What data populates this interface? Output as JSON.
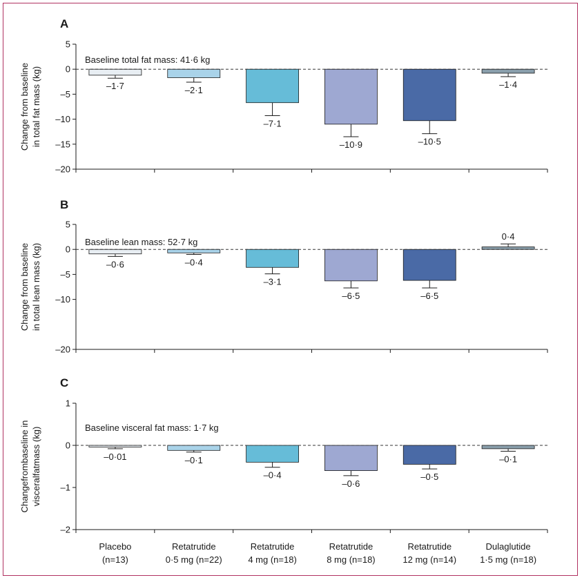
{
  "chart_data": {
    "type": "bar",
    "categories": [
      {
        "line1": "Placebo",
        "line2": "(n=13)"
      },
      {
        "line1": "Retatrutide",
        "line2": "0·5 mg (n=22)"
      },
      {
        "line1": "Retatrutide",
        "line2": "4 mg (n=18)"
      },
      {
        "line1": "Retatrutide",
        "line2": "8 mg (n=18)"
      },
      {
        "line1": "Retatrutide",
        "line2": "12 mg (n=14)"
      },
      {
        "line1": "Dulaglutide",
        "line2": "1·5 mg (n=18)"
      }
    ],
    "colors": [
      "#e8eef3",
      "#a9d3e9",
      "#66bcd8",
      "#9ea8d2",
      "#4a6aa6",
      "#8a9fac"
    ],
    "panels": [
      {
        "letter": "A",
        "ylabel_lines": [
          "Change from baseline",
          "in total fat mass (kg)"
        ],
        "baseline_text": "Baseline total fat mass: 41·6 kg",
        "ylim": [
          -20,
          5
        ],
        "yticks": [
          5,
          0,
          -5,
          -10,
          -15,
          -20
        ],
        "ytick_labels": [
          "5",
          "0",
          "–5",
          "–10",
          "–15",
          "–20"
        ],
        "values": [
          -1.7,
          -2.1,
          -7.1,
          -10.9,
          -10.5,
          -1.4
        ],
        "bar_values": [
          -1.2,
          -1.7,
          -6.7,
          -11.0,
          -10.3,
          -0.8
        ],
        "err_low": [
          -1.8,
          -2.6,
          -9.3,
          -13.5,
          -12.9,
          -1.5
        ],
        "labels": [
          "–1·7",
          "–2·1",
          "–7·1",
          "–10·9",
          "–10·5",
          "–1·4"
        ]
      },
      {
        "letter": "B",
        "ylabel_lines": [
          "Change from baseline",
          "in total lean mass (kg)"
        ],
        "baseline_text": "Baseline lean mass: 52·7 kg",
        "ylim": [
          -20,
          5
        ],
        "yticks": [
          5,
          0,
          -5,
          -10,
          -20
        ],
        "ytick_labels": [
          "5",
          "0",
          "–5",
          "–10",
          "–20"
        ],
        "values": [
          -0.6,
          -0.4,
          -3.1,
          -6.5,
          -6.5,
          0.4
        ],
        "bar_values": [
          -0.9,
          -0.7,
          -3.6,
          -6.3,
          -6.2,
          0.5
        ],
        "err_low": [
          -1.4,
          -1.0,
          -4.9,
          -7.7,
          -7.7,
          1.1
        ],
        "labels": [
          "–0·6",
          "–0·4",
          "–3·1",
          "–6·5",
          "–6·5",
          "0·4"
        ]
      },
      {
        "letter": "C",
        "ylabel_lines": [
          "Changefrombaseline in",
          "visceralfatmass (kg)"
        ],
        "baseline_text": "Baseline visceral fat mass: 1·7 kg",
        "ylim": [
          -2,
          1
        ],
        "yticks": [
          1,
          0,
          -1,
          -2
        ],
        "ytick_labels": [
          "1",
          "0",
          "–1",
          "–2"
        ],
        "values": [
          -0.01,
          -0.1,
          -0.4,
          -0.6,
          -0.5,
          -0.1
        ],
        "bar_values": [
          -0.04,
          -0.12,
          -0.4,
          -0.6,
          -0.45,
          -0.08
        ],
        "err_low": [
          -0.08,
          -0.16,
          -0.52,
          -0.72,
          -0.56,
          -0.14
        ],
        "labels": [
          "–0·01",
          "–0·1",
          "–0·4",
          "–0·6",
          "–0·5",
          "–0·1"
        ]
      }
    ]
  }
}
